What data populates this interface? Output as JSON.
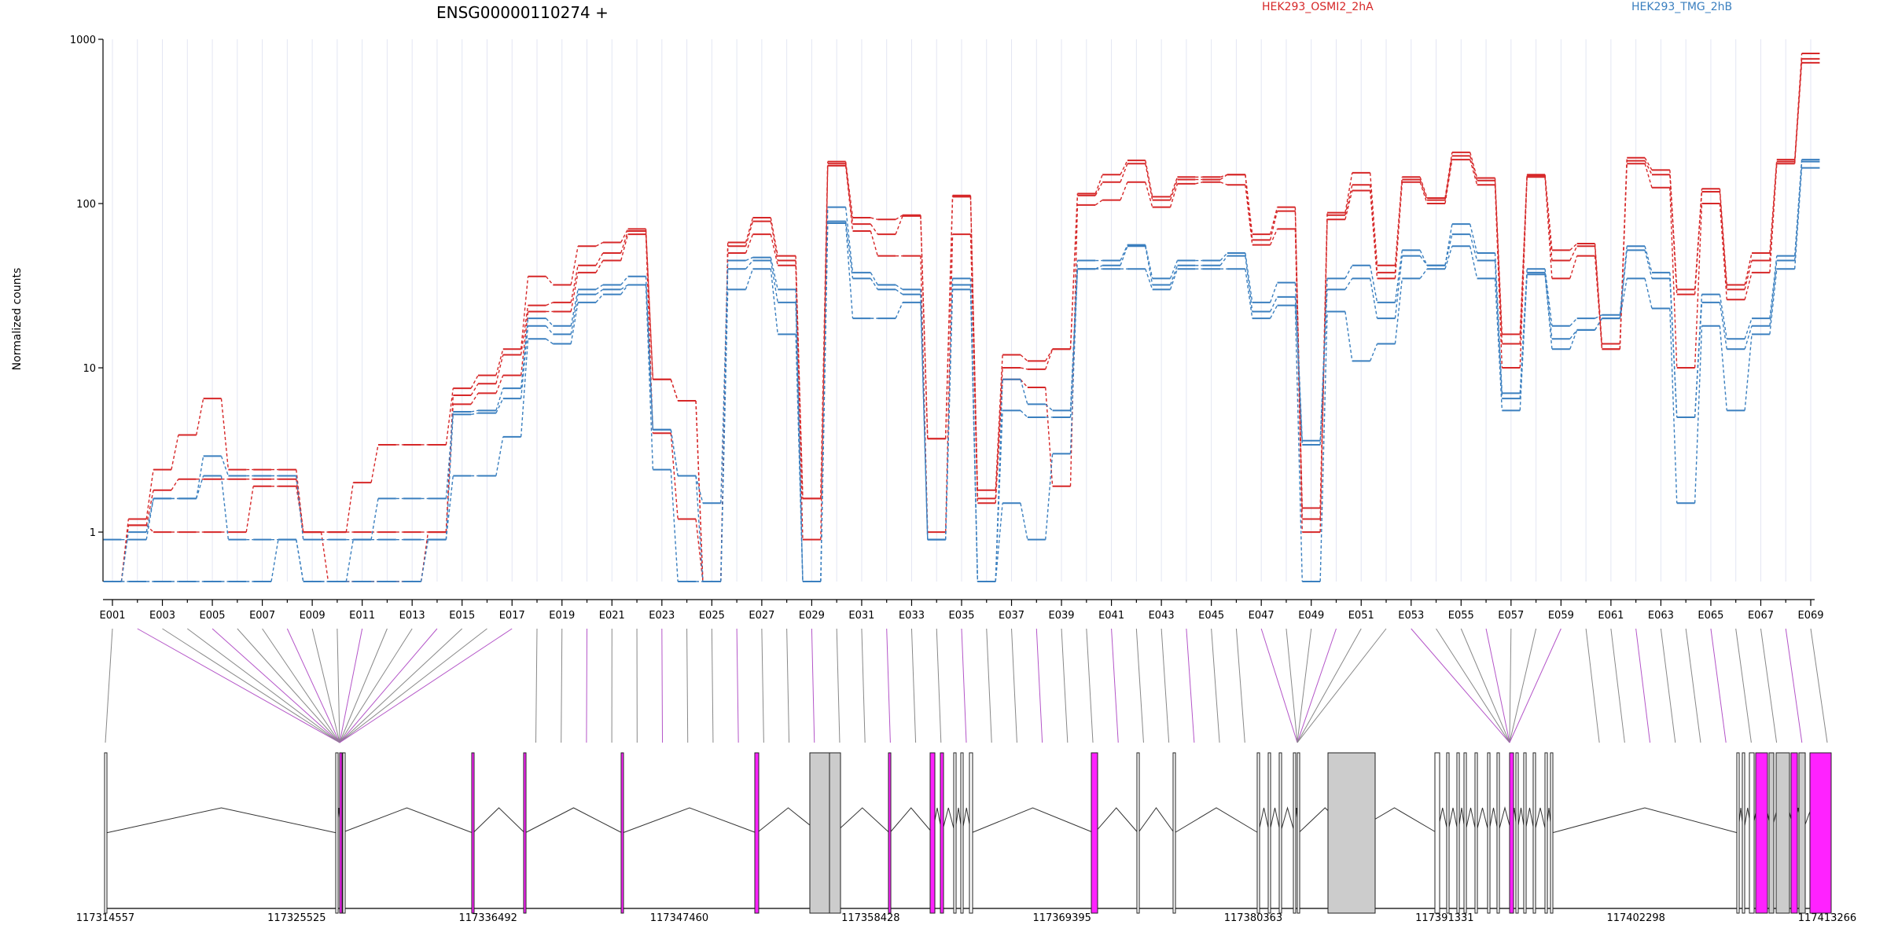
{
  "chart_data": {
    "type": "line",
    "title": "ENSG00000110274 +",
    "ylabel": "Normalized counts",
    "xlabel": "",
    "yscale": "log",
    "ylim": [
      0.5,
      1000
    ],
    "yticks": [
      "1",
      "10",
      "100",
      "1000"
    ],
    "legend": [
      "HEK293_OSMI2_2hA",
      "HEK293_TMG_2hB"
    ],
    "legend_placement": "top",
    "colors": {
      "HEK293_OSMI2_2hA": "#d62728",
      "HEK293_TMG_2hB": "#3a7fbf",
      "highlight_exon": "#ff22ff",
      "exon": "#cccccc"
    },
    "x_tick_labels": [
      "E001",
      "E003",
      "E005",
      "E007",
      "E009",
      "E011",
      "E013",
      "E015",
      "E017",
      "E019",
      "E021",
      "E023",
      "E025",
      "E027",
      "E029",
      "E031",
      "E033",
      "E035",
      "E037",
      "E039",
      "E041",
      "E043",
      "E045",
      "E047",
      "E049",
      "E051",
      "E053",
      "E055",
      "E057",
      "E059",
      "E061",
      "E063",
      "E065",
      "E067",
      "E069"
    ],
    "categories": [
      "E001",
      "E002",
      "E003",
      "E004",
      "E005",
      "E006",
      "E007",
      "E008",
      "E009",
      "E010",
      "E011",
      "E012",
      "E013",
      "E014",
      "E015",
      "E016",
      "E017",
      "E018",
      "E019",
      "E020",
      "E021",
      "E022",
      "E023",
      "E024",
      "E025",
      "E026",
      "E027",
      "E028",
      "E029",
      "E030",
      "E031",
      "E032",
      "E033",
      "E034",
      "E035",
      "E036",
      "E037",
      "E038",
      "E039",
      "E040",
      "E041",
      "E042",
      "E043",
      "E044",
      "E045",
      "E046",
      "E047",
      "E048",
      "E049",
      "E050",
      "E051",
      "E052",
      "E053",
      "E054",
      "E055",
      "E056",
      "E057",
      "E058",
      "E059",
      "E060",
      "E061",
      "E062",
      "E063",
      "E064",
      "E065",
      "E066",
      "E067",
      "E068",
      "E069"
    ],
    "series": [
      {
        "name": "HEK293_OSMI2_2hA",
        "values": [
          0.5,
          1.2,
          2.4,
          3.9,
          6.5,
          2.4,
          2.4,
          2.4,
          1.0,
          1.0,
          2.0,
          3.4,
          3.4,
          3.4,
          7.5,
          9.0,
          13,
          36,
          32,
          55,
          58,
          70,
          8.5,
          6.3,
          0.5,
          58,
          82,
          48,
          1.6,
          180,
          82,
          80,
          85,
          3.7,
          112,
          1.8,
          12,
          11,
          13,
          115,
          150,
          183,
          110,
          145,
          145,
          150,
          65,
          95,
          1.4,
          88,
          154,
          42,
          145,
          108,
          205,
          143,
          16,
          150,
          52,
          57,
          14,
          190,
          160,
          30,
          123,
          32,
          50,
          185,
          820
        ]
      },
      {
        "name": "HEK293_OSMI2_2hA",
        "values": [
          0.5,
          1.1,
          1.8,
          2.1,
          2.1,
          2.1,
          2.1,
          2.1,
          1.0,
          1.0,
          1.0,
          1.0,
          1.0,
          1.0,
          6.8,
          8.0,
          12,
          24,
          25,
          42,
          50,
          68,
          8.5,
          6.3,
          0.5,
          55,
          78,
          45,
          1.6,
          175,
          75,
          65,
          84,
          3.7,
          110,
          1.6,
          10,
          9.8,
          13,
          112,
          135,
          175,
          105,
          140,
          140,
          150,
          60,
          90,
          1.2,
          85,
          130,
          38,
          140,
          105,
          195,
          138,
          14,
          148,
          45,
          55,
          13,
          182,
          150,
          28,
          118,
          30,
          45,
          180,
          760
        ]
      },
      {
        "name": "HEK293_OSMI2_2hA",
        "values": [
          0.5,
          1.1,
          1.0,
          1.0,
          1.0,
          1.0,
          1.9,
          1.9,
          1.0,
          0.5,
          0.5,
          0.5,
          0.5,
          1.0,
          6.0,
          7.0,
          9.0,
          22,
          22,
          38,
          45,
          65,
          4.0,
          1.2,
          0.5,
          50,
          65,
          42,
          0.9,
          170,
          68,
          48,
          48,
          1.0,
          65,
          1.5,
          8.5,
          7.6,
          1.9,
          98,
          105,
          135,
          95,
          132,
          135,
          130,
          56,
          70,
          1.0,
          80,
          120,
          35,
          135,
          100,
          185,
          130,
          10,
          145,
          35,
          48,
          13,
          175,
          125,
          10,
          100,
          26,
          38,
          175,
          720
        ]
      },
      {
        "name": "HEK293_TMG_2hB",
        "values": [
          0.9,
          0.9,
          1.6,
          1.6,
          2.9,
          2.2,
          2.2,
          2.2,
          0.9,
          0.9,
          0.9,
          1.6,
          1.6,
          1.6,
          5.4,
          5.5,
          7.5,
          20,
          18,
          30,
          32,
          36,
          4.2,
          2.2,
          1.5,
          45,
          47,
          30,
          0.5,
          95,
          38,
          32,
          30,
          0.9,
          35,
          0.5,
          8.5,
          6.0,
          5.5,
          45,
          45,
          56,
          35,
          45,
          45,
          50,
          25,
          33,
          3.6,
          35,
          42,
          25,
          52,
          42,
          75,
          50,
          7.0,
          40,
          18,
          20,
          21,
          55,
          38,
          5.0,
          28,
          15,
          20,
          48,
          185
        ]
      },
      {
        "name": "HEK293_TMG_2hB",
        "values": [
          0.5,
          1.0,
          1.6,
          1.6,
          2.2,
          0.9,
          0.9,
          0.9,
          0.5,
          0.5,
          0.9,
          0.9,
          0.9,
          0.9,
          5.2,
          5.3,
          6.5,
          18,
          16,
          28,
          30,
          32,
          4.2,
          2.2,
          0.5,
          40,
          45,
          25,
          0.5,
          78,
          35,
          30,
          28,
          0.9,
          32,
          0.5,
          5.5,
          5.0,
          5.0,
          40,
          42,
          55,
          32,
          42,
          42,
          48,
          22,
          27,
          3.4,
          30,
          35,
          20,
          48,
          42,
          65,
          45,
          6.5,
          38,
          15,
          17,
          20,
          52,
          35,
          5.0,
          25,
          13,
          18,
          45,
          180
        ]
      },
      {
        "name": "HEK293_TMG_2hB",
        "values": [
          0.5,
          0.5,
          0.5,
          0.5,
          0.5,
          0.5,
          0.5,
          0.9,
          0.5,
          0.5,
          0.5,
          0.5,
          0.5,
          0.9,
          2.2,
          2.2,
          3.8,
          15,
          14,
          25,
          28,
          32,
          2.4,
          0.5,
          0.5,
          30,
          40,
          16,
          0.5,
          76,
          20,
          20,
          25,
          0.9,
          30,
          0.5,
          1.5,
          0.9,
          3.0,
          40,
          40,
          40,
          30,
          40,
          40,
          40,
          20,
          24,
          0.5,
          22,
          11,
          14,
          35,
          40,
          55,
          35,
          5.5,
          37,
          13,
          17,
          20,
          35,
          23,
          1.5,
          18,
          5.5,
          16,
          40,
          165
        ]
      }
    ],
    "gene_model": {
      "coordinate_labels": [
        "117314557",
        "117325525",
        "117336492",
        "117347460",
        "117358428",
        "117369395",
        "117380363",
        "117391331",
        "117402298",
        "117413266"
      ]
    }
  }
}
